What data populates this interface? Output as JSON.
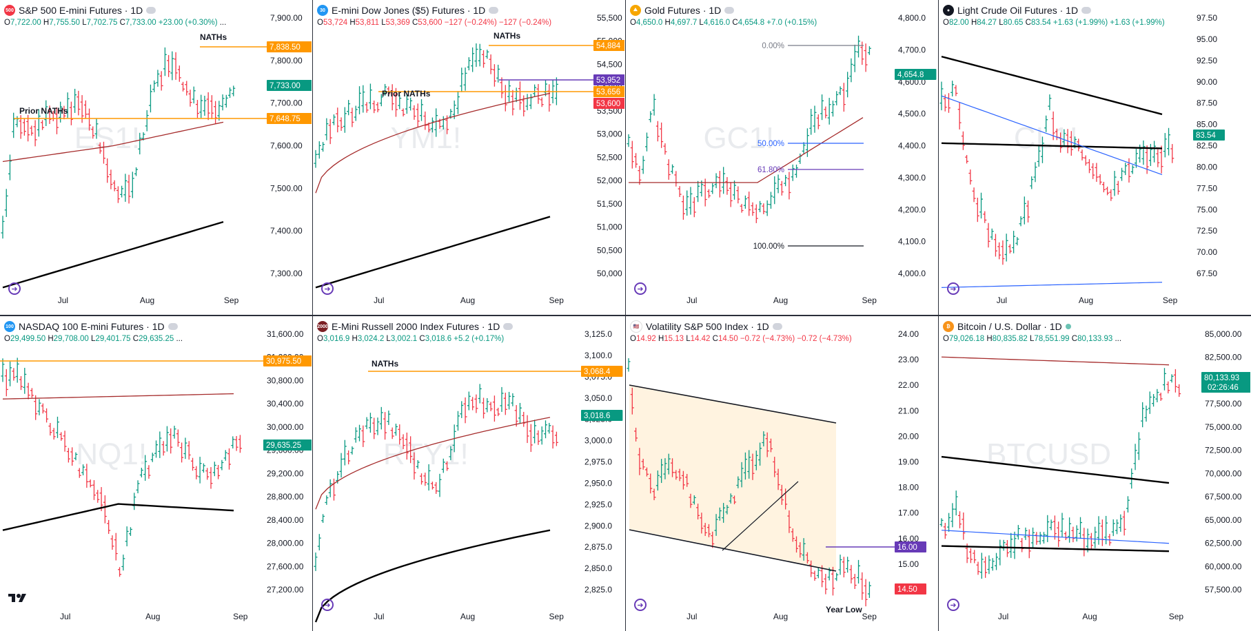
{
  "colors": {
    "up": "#089981",
    "down": "#f23645",
    "ma_fast": "#a52a2a",
    "ma_slow": "#000000",
    "ma_blue": "#2962ff",
    "orange": "#ff9800",
    "purple": "#673ab7",
    "highlight_bg": "#fff3e0"
  },
  "panels": [
    {
      "id": "es",
      "title": "S&P 500 E-mini Futures · 1D",
      "badge": "500",
      "badge_color": "#f23645",
      "ohlc": {
        "o_label": "O",
        "o": "7,722.00",
        "h_label": "H",
        "h": "7,755.50",
        "l_label": "L",
        "l": "7,702.75",
        "c_label": "C",
        "c": "7,733.00",
        "chg": "+23.00 (+0.30%)",
        "dir": "up",
        "more": "..."
      },
      "watermark": "ES1!",
      "x_labels": [
        "Jul",
        "Aug",
        "Sep"
      ],
      "price_ticks": [
        "7,900.00",
        "7,800.00",
        "7,700.00",
        "7,600.00",
        "7,500.00",
        "7,400.00",
        "7,300.00"
      ],
      "price_tags": [
        {
          "text": "7,838.50",
          "kind": "orange"
        },
        {
          "text": "7,733.00",
          "kind": "last"
        },
        {
          "text": "7,648.75",
          "kind": "orange"
        }
      ],
      "annotations": [
        "NATHs",
        "Prior NATHs"
      ]
    },
    {
      "id": "ym",
      "title": "E-mini Dow Jones ($5) Futures · 1D",
      "badge": "30",
      "badge_color": "#2196f3",
      "ohlc": {
        "o_label": "O",
        "o": "53,724",
        "h_label": "H",
        "h": "53,811",
        "l_label": "L",
        "l": "53,369",
        "c_label": "C",
        "c": "53,600",
        "chg": "−127 (−0.24%)  −127 (−0.24%)",
        "dir": "down",
        "more": ""
      },
      "watermark": "YM1!",
      "x_labels": [
        "Jul",
        "Aug",
        "Sep"
      ],
      "price_ticks": [
        "55,500",
        "55,000",
        "54,500",
        "54,000",
        "53,500",
        "53,000",
        "52,500",
        "52,000",
        "51,500",
        "51,000",
        "50,500",
        "50,000"
      ],
      "price_tags": [
        {
          "text": "54,884",
          "kind": "orange"
        },
        {
          "text": "53,952",
          "kind": "purple"
        },
        {
          "text": "53,656",
          "kind": "orange"
        },
        {
          "text": "53,600",
          "kind": "last_down"
        }
      ],
      "annotations": [
        "NATHs",
        "Prior NATHs"
      ]
    },
    {
      "id": "gc",
      "title": "Gold Futures · 1D",
      "badge": "⛰",
      "badge_color": "#f7a600",
      "ohlc": {
        "o_label": "O",
        "o": "4,650.0",
        "h_label": "H",
        "h": "4,697.7",
        "l_label": "L",
        "l": "4,616.0",
        "c_label": "C",
        "c": "4,654.8",
        "chg": "+7.0 (+0.15%)",
        "dir": "up",
        "more": ""
      },
      "watermark": "GC1!",
      "x_labels": [
        "Jul",
        "Aug",
        "Sep"
      ],
      "price_ticks": [
        "4,800.0",
        "4,700.0",
        "4,600.0",
        "4,500.0",
        "4,400.0",
        "4,300.0",
        "4,200.0",
        "4,100.0",
        "4,000.0"
      ],
      "price_tags": [
        {
          "text": "4,654.8",
          "kind": "last"
        }
      ],
      "fib_labels": [
        "0.00%",
        "50.00%",
        "61.80%",
        "100.00%"
      ]
    },
    {
      "id": "cl",
      "title": "Light Crude Oil Futures · 1D",
      "badge": "●",
      "badge_color": "#131722",
      "ohlc": {
        "o_label": "O",
        "o": "82.00",
        "h_label": "H",
        "h": "84.27",
        "l_label": "L",
        "l": "80.65",
        "c_label": "C",
        "c": "83.54",
        "chg": "+1.63 (+1.99%)  +1.63 (+1.99%)",
        "dir": "up",
        "more": ""
      },
      "watermark": "CL1!",
      "x_labels": [
        "Jul",
        "Aug",
        "Sep"
      ],
      "price_ticks": [
        "97.50",
        "95.00",
        "92.50",
        "90.00",
        "87.50",
        "85.00",
        "82.50",
        "80.00",
        "77.50",
        "75.00",
        "72.50",
        "70.00",
        "67.50"
      ],
      "price_tags": [
        {
          "text": "83.54",
          "kind": "last"
        }
      ]
    },
    {
      "id": "nq",
      "title": "NASDAQ 100 E-mini Futures · 1D",
      "badge": "100",
      "badge_color": "#2196f3",
      "ohlc": {
        "o_label": "O",
        "o": "29,499.50",
        "h_label": "H",
        "h": "29,708.00",
        "l_label": "L",
        "l": "29,401.75",
        "c_label": "C",
        "c": "29,635.25",
        "chg": "",
        "dir": "up",
        "more": "..."
      },
      "watermark": "NQ1!",
      "x_labels": [
        "Jul",
        "Aug",
        "Sep"
      ],
      "price_ticks": [
        "31,600.00",
        "31,200.00",
        "30,800.00",
        "30,400.00",
        "30,000.00",
        "29,600.00",
        "29,200.00",
        "28,800.00",
        "28,400.00",
        "28,000.00",
        "27,600.00",
        "27,200.00"
      ],
      "price_tags": [
        {
          "text": "30,975.50",
          "kind": "orange"
        },
        {
          "text": "29,635.25",
          "kind": "last"
        }
      ]
    },
    {
      "id": "rty",
      "title": "E-Mini Russell 2000 Index Futures · 1D",
      "badge": "2000",
      "badge_color": "#7b1f24",
      "ohlc": {
        "o_label": "O",
        "o": "3,016.9",
        "h_label": "H",
        "h": "3,024.2",
        "l_label": "L",
        "l": "3,002.1",
        "c_label": "C",
        "c": "3,018.6",
        "chg": "+5.2 (+0.17%)",
        "dir": "up",
        "more": ""
      },
      "watermark": "RTY1!",
      "x_labels": [
        "Jul",
        "Aug",
        "Sep"
      ],
      "price_ticks": [
        "3,125.0",
        "3,100.0",
        "3,075.0",
        "3,050.0",
        "3,025.0",
        "3,000.0",
        "2,975.0",
        "2,950.0",
        "2,925.0",
        "2,900.0",
        "2,875.0",
        "2,850.0",
        "2,825.0"
      ],
      "price_tags": [
        {
          "text": "3,068.4",
          "kind": "orange"
        },
        {
          "text": "3,018.6",
          "kind": "last"
        }
      ],
      "annotations": [
        "NATHs"
      ]
    },
    {
      "id": "vix",
      "title": "Volatility S&P 500 Index · 1D",
      "badge": "🇺🇸",
      "badge_color": "#ffffff",
      "ohlc": {
        "o_label": "O",
        "o": "14.92",
        "h_label": "H",
        "h": "15.13",
        "l_label": "L",
        "l": "14.42",
        "c_label": "C",
        "c": "14.50",
        "chg": "−0.72 (−4.73%)  −0.72 (−4.73%)",
        "dir": "down",
        "more": ""
      },
      "watermark": "VIX",
      "x_labels": [
        "Jul",
        "Aug",
        "Sep"
      ],
      "price_ticks": [
        "24.00",
        "23.00",
        "22.00",
        "21.00",
        "20.00",
        "19.00",
        "18.00",
        "17.00",
        "16.00",
        "15.00",
        "14.00"
      ],
      "price_tags": [
        {
          "text": "16.00",
          "kind": "purple"
        },
        {
          "text": "14.50",
          "kind": "last_down"
        }
      ],
      "annotations": [
        "Year Low"
      ]
    },
    {
      "id": "btc",
      "title": "Bitcoin / U.S. Dollar · 1D",
      "badge": "₿",
      "badge_color": "#f7931a",
      "ohlc": {
        "o_label": "O",
        "o": "79,026.18",
        "h_label": "H",
        "h": "80,835.82",
        "l_label": "L",
        "l": "78,551.99",
        "c_label": "C",
        "c": "80,133.93",
        "chg": "",
        "dir": "up",
        "more": "..."
      },
      "watermark": "BTCUSD",
      "x_labels": [
        "Jul",
        "Aug",
        "Sep"
      ],
      "price_ticks": [
        "85,000.00",
        "82,500.00",
        "80,000.00",
        "77,500.00",
        "75,000.00",
        "72,500.00",
        "70,000.00",
        "67,500.00",
        "65,000.00",
        "62,500.00",
        "60,000.00",
        "57,500.00"
      ],
      "price_tags": [
        {
          "text": "80,133.93",
          "kind": "last",
          "sub": "02:26:46"
        }
      ]
    }
  ],
  "chart_data": [
    {
      "type": "ohlc",
      "symbol": "ES1!",
      "title": "S&P 500 E-mini Futures · 1D",
      "ylim": [
        7250,
        7920
      ],
      "x_ticks": [
        "Jul",
        "Aug",
        "Sep"
      ],
      "last": 7733.0,
      "levels": [
        {
          "label": "NATHs",
          "value": 7838.5
        },
        {
          "label": "Prior NATHs",
          "value": 7648.75
        }
      ]
    },
    {
      "type": "ohlc",
      "symbol": "YM1!",
      "title": "E-mini Dow Jones ($5) Futures · 1D",
      "ylim": [
        49800,
        55600
      ],
      "x_ticks": [
        "Jul",
        "Aug",
        "Sep"
      ],
      "last": 53600,
      "levels": [
        {
          "label": "NATHs",
          "value": 54884
        },
        {
          "label": "Prior NATHs",
          "value": 53656
        },
        {
          "value": 53952
        }
      ]
    },
    {
      "type": "ohlc",
      "symbol": "GC1!",
      "title": "Gold Futures · 1D",
      "ylim": [
        3950,
        4820
      ],
      "x_ticks": [
        "Jul",
        "Aug",
        "Sep"
      ],
      "last": 4654.8,
      "fib_retracement": [
        {
          "label": "0.00%"
        },
        {
          "label": "50.00%"
        },
        {
          "label": "61.80%"
        },
        {
          "label": "100.00%"
        }
      ]
    },
    {
      "type": "ohlc",
      "symbol": "CL1!",
      "title": "Light Crude Oil Futures · 1D",
      "ylim": [
        66.5,
        98
      ],
      "x_ticks": [
        "Jul",
        "Aug",
        "Sep"
      ],
      "last": 83.54
    },
    {
      "type": "ohlc",
      "symbol": "NQ1!",
      "title": "NASDAQ 100 E-mini Futures · 1D",
      "ylim": [
        27000,
        31700
      ],
      "x_ticks": [
        "Jul",
        "Aug",
        "Sep"
      ],
      "last": 29635.25,
      "levels": [
        {
          "value": 30975.5
        }
      ]
    },
    {
      "type": "ohlc",
      "symbol": "RTY1!",
      "title": "E-Mini Russell 2000 Index Futures · 1D",
      "ylim": [
        2815,
        3130
      ],
      "x_ticks": [
        "Jul",
        "Aug",
        "Sep"
      ],
      "last": 3018.6,
      "levels": [
        {
          "label": "NATHs",
          "value": 3068.4
        }
      ]
    },
    {
      "type": "ohlc",
      "symbol": "VIX",
      "title": "Volatility S&P 500 Index · 1D",
      "ylim": [
        13.9,
        24.1
      ],
      "x_ticks": [
        "Jul",
        "Aug",
        "Sep"
      ],
      "last": 14.5,
      "levels": [
        {
          "value": 16.0
        }
      ],
      "annotations": [
        "Year Low"
      ]
    },
    {
      "type": "ohlc",
      "symbol": "BTCUSD",
      "title": "Bitcoin / U.S. Dollar · 1D",
      "ylim": [
        56500,
        85500
      ],
      "x_ticks": [
        "Jul",
        "Aug",
        "Sep"
      ],
      "last": 80133.93
    }
  ]
}
